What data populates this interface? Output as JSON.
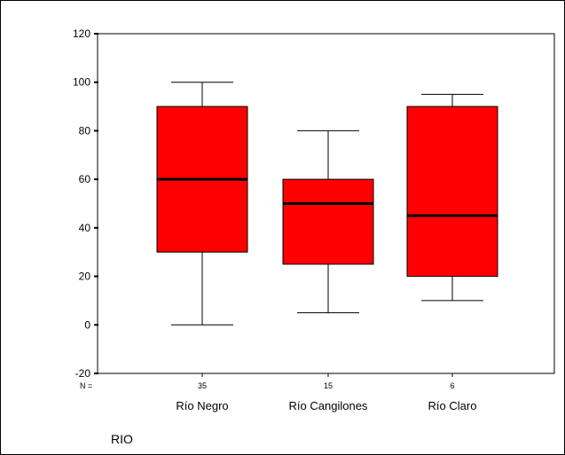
{
  "chart_data": {
    "type": "boxplot",
    "title": "",
    "xlabel": "RIO",
    "ylabel": "",
    "ylim": [
      -20,
      120
    ],
    "yticks": [
      -20,
      0,
      20,
      40,
      60,
      80,
      100,
      120
    ],
    "n_prefix": "N =",
    "grid": false,
    "legend": "none",
    "categories": [
      "Río Negro",
      "Río Cangilones",
      "Río Claro"
    ],
    "n": [
      "35",
      "15",
      "6"
    ],
    "box_color": "#ff0000",
    "boxes": [
      {
        "category": "Río Negro",
        "n": 35,
        "min": 0,
        "q1": 30,
        "median": 60,
        "q3": 90,
        "max": 100
      },
      {
        "category": "Río Cangilones",
        "n": 15,
        "min": 5,
        "q1": 25,
        "median": 50,
        "q3": 60,
        "max": 80
      },
      {
        "category": "Río Claro",
        "n": 6,
        "min": 10,
        "q1": 20,
        "median": 45,
        "q3": 90,
        "max": 95
      }
    ]
  }
}
